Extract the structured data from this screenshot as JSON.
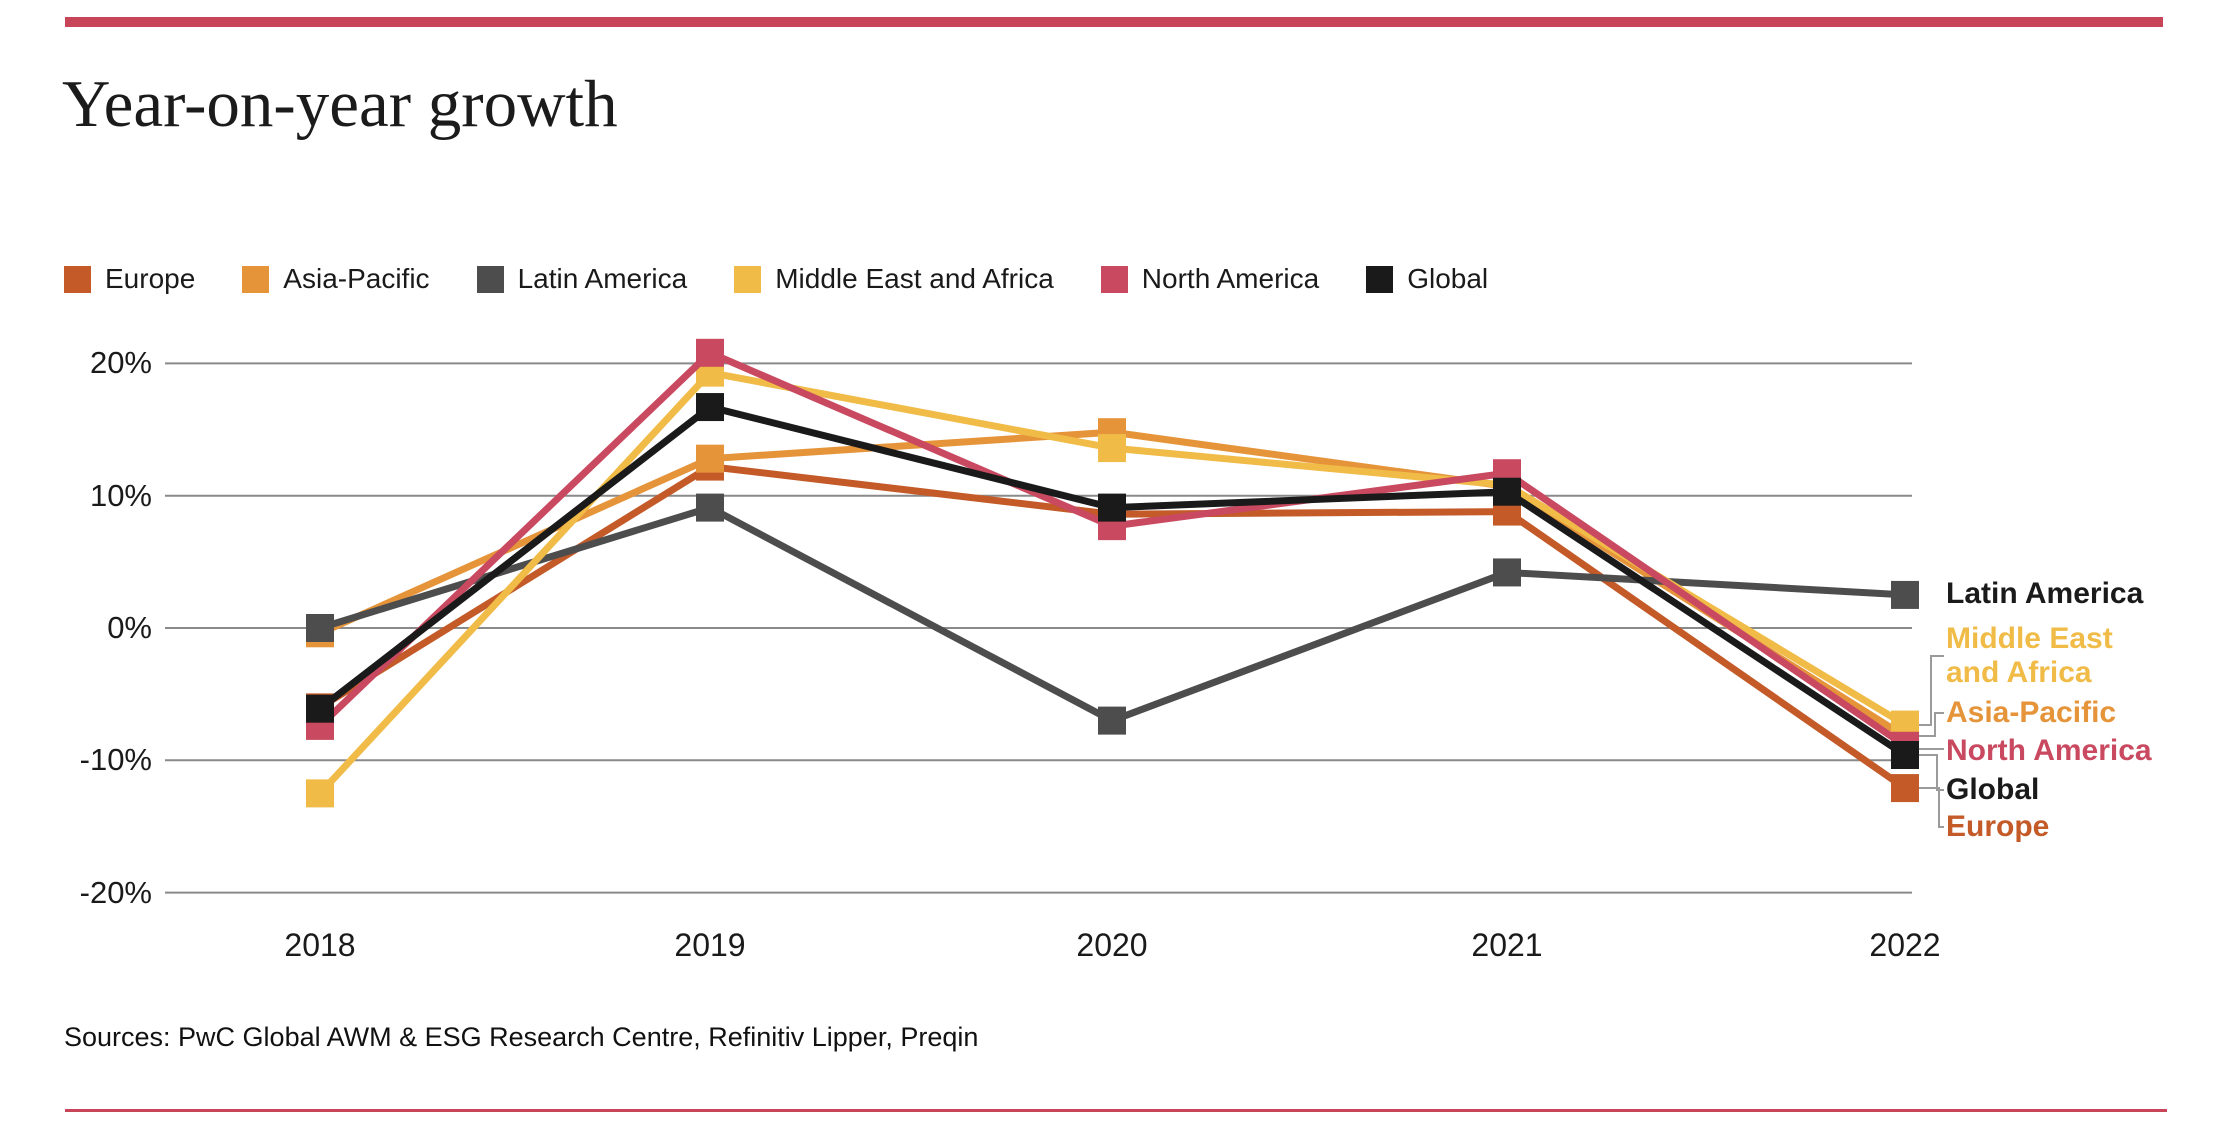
{
  "page": {
    "title": "Year-on-year growth",
    "source": "Sources: PwC Global AWM & ESG Research Centre, Refinitiv Lipper, Preqin"
  },
  "colors": {
    "accent_bar": "#c84459",
    "bottom_rule": "#c84459",
    "gridline": "#8a8a8a",
    "connector": "#9b9b9b",
    "text": "#1a1a1a",
    "europe": "#c35a28",
    "asia_pacific": "#e5943a",
    "latin_america": "#4d4d4d",
    "middle_east_africa": "#f0bb47",
    "north_america": "#c94a60",
    "global": "#1a1a1a"
  },
  "legend": {
    "items": [
      {
        "label": "Europe",
        "color_key": "europe"
      },
      {
        "label": "Asia-Pacific",
        "color_key": "asia_pacific"
      },
      {
        "label": "Latin America",
        "color_key": "latin_america"
      },
      {
        "label": "Middle East and Africa",
        "color_key": "middle_east_africa"
      },
      {
        "label": "North America",
        "color_key": "north_america"
      },
      {
        "label": "Global",
        "color_key": "global"
      }
    ]
  },
  "chart_data": {
    "type": "line",
    "title": "Year-on-year growth",
    "x": [
      "2018",
      "2019",
      "2020",
      "2021",
      "2022"
    ],
    "series": [
      {
        "name": "Europe",
        "color_key": "europe",
        "values": [
          -6.0,
          12.2,
          8.6,
          8.8,
          -12.1
        ]
      },
      {
        "name": "Asia-Pacific",
        "color_key": "asia_pacific",
        "values": [
          -0.4,
          12.8,
          14.8,
          10.7,
          -8.2
        ]
      },
      {
        "name": "Latin America",
        "color_key": "latin_america",
        "values": [
          0.0,
          9.1,
          -7.0,
          4.2,
          2.5
        ]
      },
      {
        "name": "Middle East and Africa",
        "color_key": "middle_east_africa",
        "values": [
          -12.5,
          19.3,
          13.6,
          10.8,
          -7.3
        ]
      },
      {
        "name": "North America",
        "color_key": "north_america",
        "values": [
          -7.4,
          20.8,
          7.7,
          11.7,
          -8.9
        ]
      },
      {
        "name": "Global",
        "color_key": "global",
        "values": [
          -6.1,
          16.7,
          9.1,
          10.3,
          -9.6
        ]
      }
    ],
    "y_ticks": [
      {
        "value": 20,
        "label": "20%"
      },
      {
        "value": 10,
        "label": "10%"
      },
      {
        "value": 0,
        "label": "0%"
      },
      {
        "value": -10,
        "label": "-10%"
      },
      {
        "value": -20,
        "label": "-20%"
      }
    ],
    "ylim": [
      -20,
      20
    ],
    "xlabel": "",
    "ylabel": "",
    "grid": "horizontal",
    "marker": "square",
    "legend_position": "top",
    "end_labels": [
      {
        "series": "Latin America",
        "text": "Latin America",
        "color_key": "latin_america_text"
      },
      {
        "series": "Middle East and Africa",
        "text": "Middle East\nand Africa",
        "color_key": "middle_east_africa"
      },
      {
        "series": "Asia-Pacific",
        "text": "Asia-Pacific",
        "color_key": "asia_pacific"
      },
      {
        "series": "North America",
        "text": "North America",
        "color_key": "north_america"
      },
      {
        "series": "Global",
        "text": "Global",
        "color_key": "global"
      },
      {
        "series": "Europe",
        "text": "Europe",
        "color_key": "europe"
      }
    ]
  }
}
